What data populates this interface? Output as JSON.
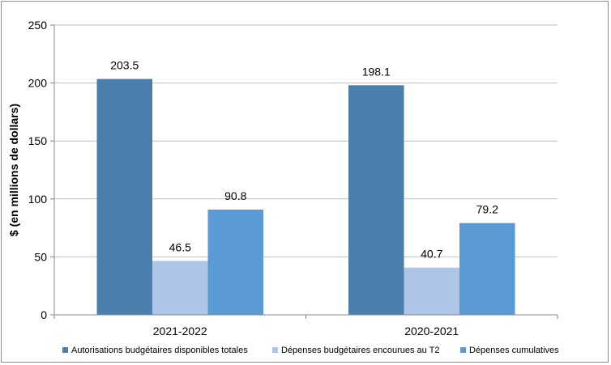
{
  "chart_data": {
    "type": "bar",
    "categories": [
      "2021-2022",
      "2020-2021"
    ],
    "series": [
      {
        "name": "Autorisations budgétaires disponibles totales",
        "values": [
          203.5,
          198.1
        ],
        "color": "#4a7ead"
      },
      {
        "name": "Dépenses budgétaires encourues au T2",
        "values": [
          46.5,
          40.7
        ],
        "color": "#adc5e6"
      },
      {
        "name": "Dépenses cumulatives",
        "values": [
          90.8,
          79.2
        ],
        "color": "#5a9bd5"
      }
    ],
    "data_labels": [
      [
        "203.5",
        "198.1"
      ],
      [
        "46.5",
        "40.7"
      ],
      [
        "90.8",
        "79.2"
      ]
    ],
    "ylabel": "$ (en millions de dollars)",
    "ylim": [
      0,
      250
    ],
    "yticks": [
      "0",
      "50",
      "100",
      "150",
      "200",
      "250"
    ],
    "grid": true,
    "legend_position": "bottom"
  }
}
